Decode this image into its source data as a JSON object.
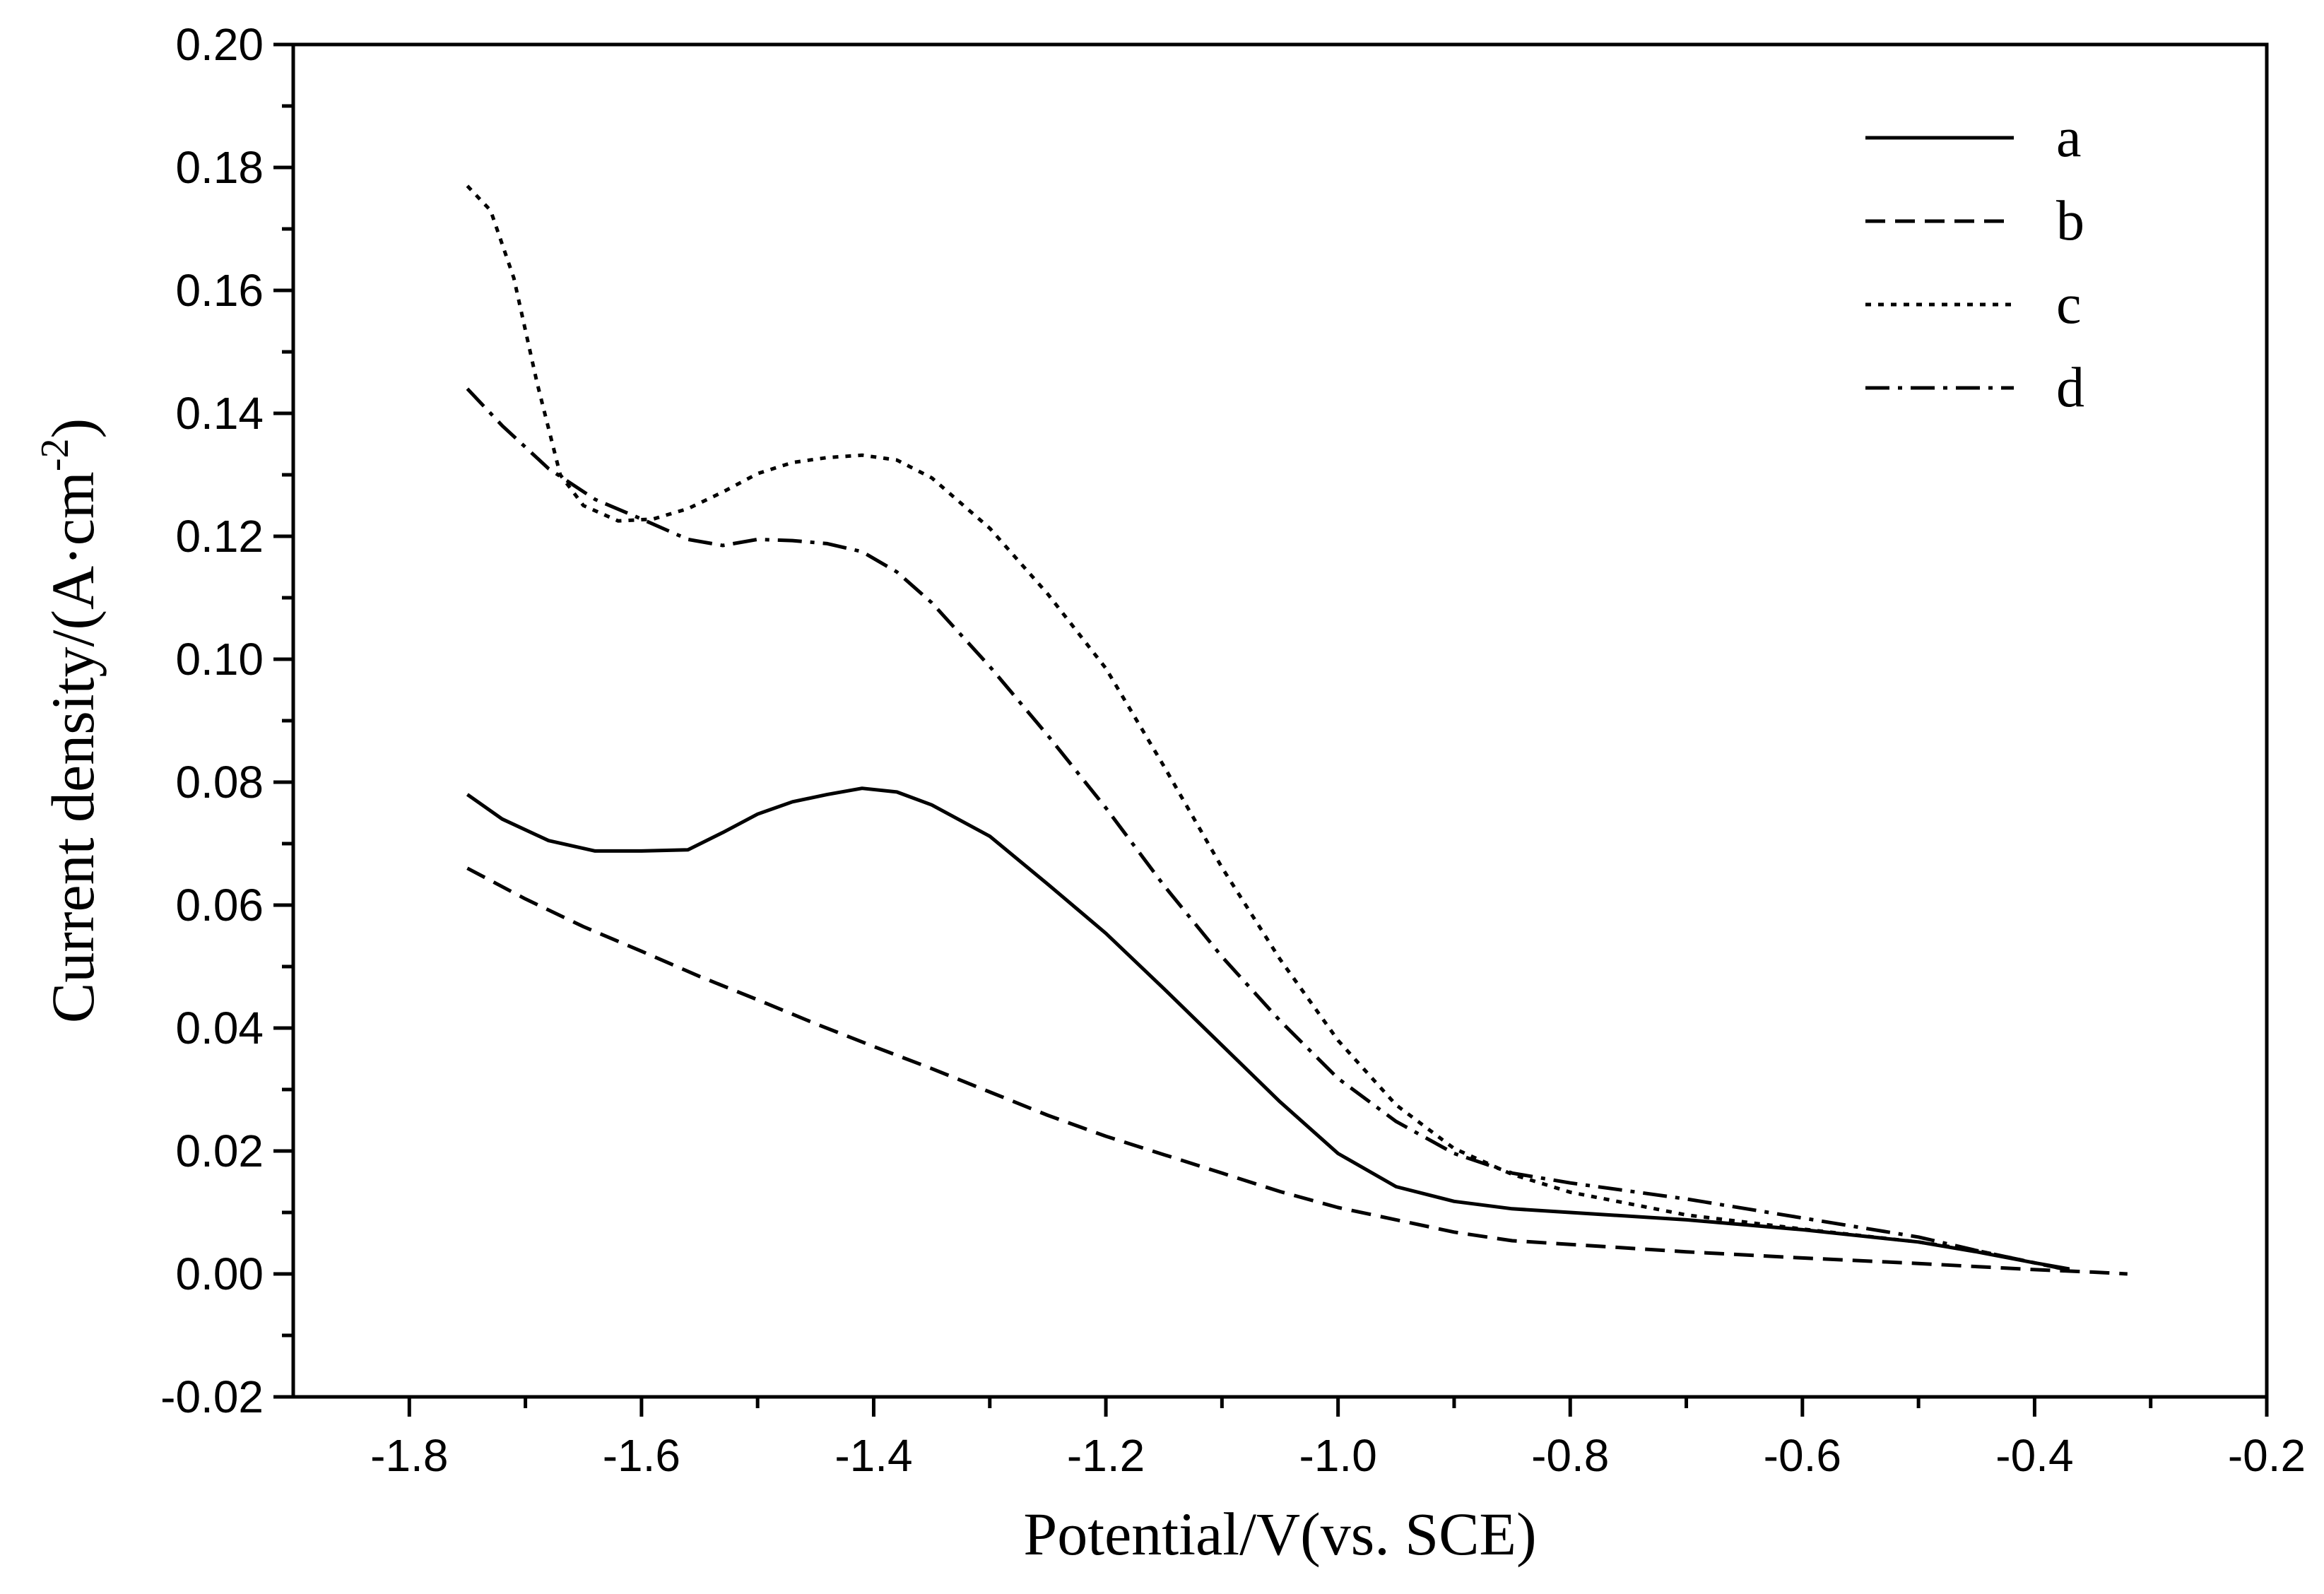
{
  "chart_data": {
    "type": "line",
    "title": "",
    "xlabel": "Potential/V(vs. SCE)",
    "ylabel": "Current density/(A·cm",
    "ylabel_superscript": "-2",
    "ylabel_close": ")",
    "xlim": [
      -1.9,
      -0.2
    ],
    "ylim": [
      -0.02,
      0.2
    ],
    "x_ticks": [
      -1.8,
      -1.6,
      -1.4,
      -1.2,
      -1.0,
      -0.8,
      -0.6,
      -0.4,
      -0.2
    ],
    "x_tick_labels": [
      "-1.8",
      "-1.6",
      "-1.4",
      "-1.2",
      "-1.0",
      "-0.8",
      "-0.6",
      "-0.4",
      "-0.2"
    ],
    "y_ticks": [
      -0.02,
      0.0,
      0.02,
      0.04,
      0.06,
      0.08,
      0.1,
      0.12,
      0.14,
      0.16,
      0.18,
      0.2
    ],
    "y_tick_labels": [
      "-0.02",
      "0.00",
      "0.02",
      "0.04",
      "0.06",
      "0.08",
      "0.10",
      "0.12",
      "0.14",
      "0.16",
      "0.18",
      "0.20"
    ],
    "grid": false,
    "legend_position": "top-right",
    "series": [
      {
        "name": "a",
        "style": "solid",
        "x": [
          -1.75,
          -1.72,
          -1.68,
          -1.64,
          -1.6,
          -1.56,
          -1.53,
          -1.5,
          -1.47,
          -1.44,
          -1.41,
          -1.38,
          -1.35,
          -1.3,
          -1.25,
          -1.2,
          -1.15,
          -1.1,
          -1.05,
          -1.0,
          -0.95,
          -0.9,
          -0.85,
          -0.8,
          -0.7,
          -0.6,
          -0.5,
          -0.45,
          -0.4,
          -0.37
        ],
        "y": [
          0.078,
          0.074,
          0.0705,
          0.0688,
          0.0688,
          0.069,
          0.0718,
          0.0748,
          0.0768,
          0.078,
          0.079,
          0.0784,
          0.0763,
          0.0712,
          0.0634,
          0.0554,
          0.0464,
          0.0372,
          0.028,
          0.0196,
          0.0142,
          0.0118,
          0.0106,
          0.01,
          0.0088,
          0.0072,
          0.0052,
          0.0036,
          0.0018,
          0.0008
        ]
      },
      {
        "name": "b",
        "style": "dashed",
        "x": [
          -1.75,
          -1.7,
          -1.65,
          -1.6,
          -1.55,
          -1.5,
          -1.45,
          -1.4,
          -1.35,
          -1.3,
          -1.25,
          -1.2,
          -1.15,
          -1.1,
          -1.05,
          -1.0,
          -0.95,
          -0.9,
          -0.85,
          -0.8,
          -0.7,
          -0.6,
          -0.5,
          -0.45,
          -0.4,
          -0.35,
          -0.32
        ],
        "y": [
          0.066,
          0.061,
          0.0565,
          0.0525,
          0.0484,
          0.0446,
          0.0407,
          0.037,
          0.0334,
          0.0296,
          0.0258,
          0.0224,
          0.0194,
          0.0164,
          0.0134,
          0.0108,
          0.0088,
          0.0068,
          0.0054,
          0.0048,
          0.0036,
          0.0026,
          0.0017,
          0.0012,
          0.0007,
          0.0003,
          0.0
        ]
      },
      {
        "name": "c",
        "style": "dotted",
        "x": [
          -1.75,
          -1.73,
          -1.71,
          -1.69,
          -1.67,
          -1.65,
          -1.62,
          -1.59,
          -1.56,
          -1.53,
          -1.5,
          -1.47,
          -1.44,
          -1.41,
          -1.38,
          -1.35,
          -1.3,
          -1.25,
          -1.2,
          -1.15,
          -1.1,
          -1.05,
          -1.0,
          -0.95,
          -0.9,
          -0.85,
          -0.8,
          -0.7,
          -0.6,
          -0.5,
          -0.45,
          -0.4,
          -0.37
        ],
        "y": [
          0.177,
          0.173,
          0.162,
          0.145,
          0.13,
          0.125,
          0.1225,
          0.1228,
          0.1245,
          0.1272,
          0.1302,
          0.132,
          0.1328,
          0.1332,
          0.1324,
          0.1295,
          0.1213,
          0.1106,
          0.0985,
          0.0826,
          0.0661,
          0.0512,
          0.038,
          0.0275,
          0.0204,
          0.0162,
          0.0133,
          0.0096,
          0.0073,
          0.0052,
          0.0038,
          0.0018,
          0.0006
        ]
      },
      {
        "name": "d",
        "style": "dash-dot",
        "x": [
          -1.75,
          -1.72,
          -1.68,
          -1.64,
          -1.6,
          -1.56,
          -1.53,
          -1.5,
          -1.47,
          -1.44,
          -1.41,
          -1.38,
          -1.35,
          -1.3,
          -1.25,
          -1.2,
          -1.15,
          -1.1,
          -1.05,
          -1.0,
          -0.95,
          -0.9,
          -0.85,
          -0.8,
          -0.7,
          -0.6,
          -0.5,
          -0.45,
          -0.4,
          -0.37
        ],
        "y": [
          0.144,
          0.138,
          0.131,
          0.126,
          0.1228,
          0.1195,
          0.1185,
          0.1195,
          0.1193,
          0.1188,
          0.1175,
          0.1142,
          0.1092,
          0.0988,
          0.0876,
          0.0758,
          0.0632,
          0.0516,
          0.0412,
          0.0318,
          0.0248,
          0.0196,
          0.0164,
          0.0148,
          0.0122,
          0.0091,
          0.006,
          0.0038,
          0.0018,
          0.0006
        ]
      }
    ]
  }
}
